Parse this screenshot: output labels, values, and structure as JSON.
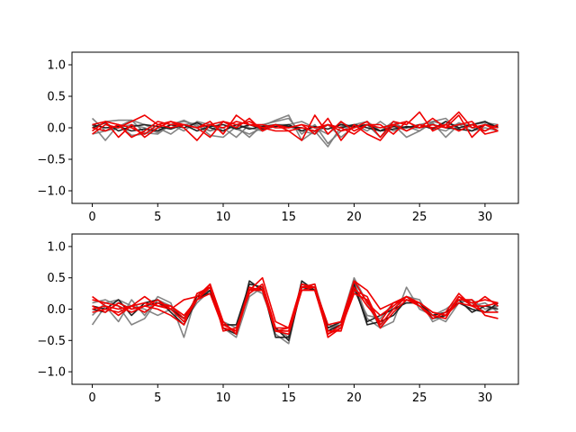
{
  "chart_data": [
    {
      "type": "line",
      "title": "",
      "xlabel": "",
      "ylabel": "",
      "xlim": [
        -1.55,
        32.55
      ],
      "ylim": [
        -1.2,
        1.2
      ],
      "xticks": [
        0,
        5,
        10,
        15,
        20,
        25,
        30
      ],
      "yticks": [
        -1.0,
        -0.5,
        0.0,
        0.5,
        1.0
      ],
      "xtick_labels": [
        "0",
        "5",
        "10",
        "15",
        "20",
        "25",
        "30"
      ],
      "ytick_labels": [
        "−1.0",
        "−0.5",
        "0.0",
        "0.5",
        "1.0"
      ],
      "grid": false,
      "x": [
        0,
        1,
        2,
        3,
        4,
        5,
        6,
        7,
        8,
        9,
        10,
        11,
        12,
        13,
        14,
        15,
        16,
        17,
        18,
        19,
        20,
        21,
        22,
        23,
        24,
        25,
        26,
        27,
        28,
        29,
        30,
        31
      ],
      "series": [
        {
          "color": "#777777",
          "values": [
            0.15,
            -0.05,
            0.02,
            0.12,
            -0.08,
            -0.1,
            0.05,
            0.12,
            0.02,
            -0.05,
            0.0,
            -0.15,
            0.05,
            0.03,
            0.12,
            0.2,
            -0.2,
            -0.05,
            -0.3,
            0.02,
            0.05,
            -0.05,
            0.1,
            -0.05,
            0.02,
            -0.05,
            0.08,
            -0.15,
            0.05,
            0.05,
            0.08,
            0.05
          ]
        },
        {
          "color": "#777777",
          "values": [
            -0.05,
            0.1,
            0.12,
            0.12,
            0.05,
            -0.05,
            0.05,
            0.1,
            0.05,
            -0.12,
            -0.15,
            0.02,
            -0.15,
            0.05,
            0.1,
            0.15,
            -0.1,
            0.05,
            -0.25,
            -0.05,
            0.05,
            0.1,
            -0.05,
            0.05,
            -0.15,
            -0.05,
            0.1,
            0.15,
            -0.05,
            0.05,
            0.1,
            -0.05
          ]
        },
        {
          "color": "#777777",
          "values": [
            0.05,
            -0.2,
            0.05,
            -0.12,
            -0.1,
            0.0,
            -0.1,
            0.05,
            0.08,
            -0.05,
            0.1,
            -0.02,
            -0.1,
            0.0,
            0.05,
            0.05,
            0.1,
            0.0,
            -0.1,
            0.08,
            0.0,
            0.05,
            -0.15,
            0.05,
            0.0,
            0.05,
            0.1,
            0.05,
            0.05,
            -0.05,
            0.0,
            -0.05
          ]
        },
        {
          "color": "#777777",
          "values": [
            -0.1,
            -0.05,
            0.0,
            0.05,
            0.0,
            -0.08,
            0.05,
            -0.05,
            0.1,
            0.05,
            -0.05,
            0.05,
            0.0,
            -0.05,
            0.05,
            0.02,
            -0.05,
            -0.1,
            0.05,
            -0.15,
            0.02,
            0.05,
            -0.05,
            0.1,
            -0.05,
            0.05,
            0.0,
            -0.05,
            0.08,
            0.0,
            -0.05,
            0.05
          ]
        },
        {
          "color": "#222222",
          "values": [
            0.0,
            0.08,
            -0.05,
            0.02,
            0.05,
            0.02,
            -0.02,
            0.05,
            -0.05,
            0.02,
            0.05,
            -0.02,
            0.05,
            -0.02,
            0.02,
            0.05,
            -0.05,
            0.02,
            -0.02,
            0.05,
            0.02,
            0.05,
            -0.05,
            0.02,
            0.0,
            0.05,
            -0.02,
            0.1,
            0.0,
            0.05,
            0.1,
            0.0
          ]
        },
        {
          "color": "#222222",
          "values": [
            0.05,
            0.0,
            0.02,
            -0.05,
            -0.02,
            -0.05,
            0.05,
            0.0,
            0.08,
            0.0,
            -0.05,
            0.05,
            -0.02,
            0.02,
            0.05,
            0.02,
            0.0,
            -0.05,
            0.05,
            0.0,
            0.05,
            0.0,
            -0.05,
            -0.02,
            0.02,
            0.0,
            0.05,
            0.0,
            -0.02,
            -0.05,
            0.05,
            0.02
          ]
        },
        {
          "color": "#ee0000",
          "values": [
            0.05,
            0.1,
            0.05,
            -0.15,
            -0.05,
            0.1,
            0.05,
            0.05,
            0.0,
            -0.15,
            0.1,
            0.05,
            0.1,
            0.0,
            -0.05,
            -0.05,
            0.0,
            -0.05,
            0.05,
            -0.05,
            0.0,
            0.1,
            -0.15,
            0.1,
            0.05,
            0.25,
            -0.05,
            0.05,
            0.25,
            0.0,
            0.05,
            0.0
          ]
        },
        {
          "color": "#ee0000",
          "values": [
            -0.1,
            0.05,
            0.0,
            0.1,
            0.2,
            0.05,
            0.1,
            0.0,
            -0.2,
            0.05,
            0.1,
            0.0,
            0.15,
            -0.05,
            0.05,
            -0.05,
            -0.2,
            0.2,
            -0.1,
            0.1,
            -0.05,
            0.05,
            0.05,
            -0.1,
            0.1,
            0.0,
            0.05,
            0.0,
            0.2,
            -0.15,
            0.05,
            -0.05
          ]
        },
        {
          "color": "#ee0000",
          "values": [
            0.0,
            -0.05,
            0.05,
            0.0,
            -0.1,
            0.05,
            0.0,
            0.05,
            0.0,
            0.05,
            0.0,
            0.1,
            0.05,
            0.0,
            0.05,
            0.0,
            0.05,
            0.0,
            0.05,
            0.0,
            -0.1,
            0.05,
            0.0,
            0.05,
            -0.05,
            0.05,
            0.0,
            0.05,
            -0.05,
            0.05,
            -0.05,
            0.05
          ]
        },
        {
          "color": "#ee0000",
          "values": [
            -0.05,
            0.1,
            -0.15,
            0.05,
            -0.15,
            0.0,
            0.1,
            0.05,
            0.0,
            0.1,
            -0.1,
            0.2,
            0.05,
            0.05,
            0.0,
            0.0,
            0.05,
            -0.1,
            0.15,
            -0.2,
            0.05,
            -0.1,
            -0.2,
            0.05,
            0.1,
            0.0,
            0.15,
            0.0,
            0.05,
            0.1,
            -0.1,
            -0.05
          ]
        }
      ]
    },
    {
      "type": "line",
      "title": "",
      "xlabel": "",
      "ylabel": "",
      "xlim": [
        -1.55,
        32.55
      ],
      "ylim": [
        -1.2,
        1.2
      ],
      "xticks": [
        0,
        5,
        10,
        15,
        20,
        25,
        30
      ],
      "yticks": [
        -1.0,
        -0.5,
        0.0,
        0.5,
        1.0
      ],
      "xtick_labels": [
        "0",
        "5",
        "10",
        "15",
        "20",
        "25",
        "30"
      ],
      "ytick_labels": [
        "−1.0",
        "−0.5",
        "0.0",
        "0.5",
        "1.0"
      ],
      "grid": false,
      "x": [
        0,
        1,
        2,
        3,
        4,
        5,
        6,
        7,
        8,
        9,
        10,
        11,
        12,
        13,
        14,
        15,
        16,
        17,
        18,
        19,
        20,
        21,
        22,
        23,
        24,
        25,
        26,
        27,
        28,
        29,
        30,
        31
      ],
      "series": [
        {
          "color": "#777777",
          "values": [
            -0.25,
            0.05,
            -0.2,
            0.15,
            -0.1,
            0.2,
            0.1,
            -0.45,
            0.25,
            0.3,
            -0.3,
            -0.45,
            0.2,
            0.35,
            -0.4,
            -0.55,
            0.4,
            0.3,
            -0.35,
            -0.2,
            0.5,
            0.1,
            -0.3,
            -0.2,
            0.35,
            0.0,
            -0.1,
            -0.2,
            0.1,
            0.15,
            0.0,
            0.05
          ]
        },
        {
          "color": "#777777",
          "values": [
            0.1,
            0.15,
            0.05,
            -0.25,
            -0.15,
            0.15,
            0.05,
            -0.15,
            0.15,
            0.35,
            -0.25,
            -0.35,
            0.35,
            0.25,
            -0.3,
            -0.45,
            0.35,
            0.4,
            -0.3,
            -0.25,
            0.45,
            -0.15,
            -0.3,
            0.05,
            0.2,
            0.15,
            -0.2,
            -0.1,
            0.2,
            0.05,
            0.1,
            -0.05
          ]
        },
        {
          "color": "#777777",
          "values": [
            -0.1,
            0.1,
            0.15,
            0.05,
            0.0,
            -0.1,
            0.0,
            -0.2,
            0.1,
            0.3,
            -0.2,
            -0.3,
            0.3,
            0.3,
            -0.35,
            -0.35,
            0.3,
            0.35,
            -0.25,
            -0.3,
            0.3,
            -0.1,
            -0.15,
            0.1,
            0.2,
            0.05,
            -0.1,
            0.0,
            0.15,
            0.1,
            -0.05,
            0.05
          ]
        },
        {
          "color": "#222222",
          "values": [
            0.0,
            -0.05,
            0.1,
            0.0,
            0.05,
            0.1,
            0.0,
            -0.15,
            0.2,
            0.25,
            -0.25,
            -0.25,
            0.4,
            0.35,
            -0.45,
            -0.45,
            0.45,
            0.3,
            -0.3,
            -0.2,
            0.35,
            -0.2,
            -0.1,
            0.0,
            0.1,
            0.1,
            -0.1,
            -0.05,
            0.1,
            0.0,
            -0.05,
            0.1
          ]
        },
        {
          "color": "#222222",
          "values": [
            0.05,
            0.0,
            0.15,
            -0.1,
            0.1,
            0.15,
            -0.05,
            -0.25,
            0.15,
            0.3,
            -0.3,
            -0.4,
            0.45,
            0.3,
            -0.3,
            -0.5,
            0.35,
            0.3,
            -0.35,
            -0.25,
            0.4,
            -0.25,
            -0.2,
            -0.1,
            0.15,
            0.1,
            -0.15,
            -0.1,
            0.15,
            -0.05,
            0.05,
            0.0
          ]
        },
        {
          "color": "#ee0000",
          "values": [
            0.2,
            0.05,
            -0.1,
            0.05,
            0.2,
            0.05,
            0.0,
            0.15,
            0.2,
            0.4,
            -0.2,
            -0.4,
            0.3,
            0.5,
            -0.2,
            -0.3,
            0.35,
            0.35,
            -0.4,
            -0.3,
            0.45,
            0.3,
            0.0,
            0.1,
            0.2,
            0.1,
            -0.05,
            -0.1,
            0.2,
            0.1,
            0.15,
            0.1
          ]
        },
        {
          "color": "#ee0000",
          "values": [
            0.0,
            0.05,
            0.0,
            0.05,
            -0.05,
            0.1,
            0.05,
            -0.15,
            0.15,
            0.25,
            -0.3,
            -0.35,
            0.35,
            0.3,
            -0.35,
            -0.35,
            0.3,
            0.3,
            -0.4,
            -0.25,
            0.3,
            0.2,
            -0.25,
            0.0,
            0.2,
            0.05,
            -0.1,
            -0.15,
            0.2,
            0.05,
            -0.05,
            -0.05
          ]
        },
        {
          "color": "#ee0000",
          "values": [
            0.05,
            -0.05,
            0.1,
            0.0,
            0.05,
            0.0,
            -0.1,
            -0.25,
            0.25,
            0.35,
            -0.25,
            -0.35,
            0.3,
            0.3,
            -0.35,
            -0.3,
            0.4,
            0.35,
            -0.35,
            -0.35,
            0.35,
            0.05,
            -0.2,
            0.1,
            0.15,
            0.05,
            -0.15,
            -0.05,
            0.25,
            0.05,
            0.2,
            0.05
          ]
        },
        {
          "color": "#ee0000",
          "values": [
            -0.05,
            0.0,
            -0.05,
            0.05,
            0.1,
            0.05,
            0.05,
            -0.1,
            0.15,
            0.4,
            -0.35,
            -0.3,
            0.25,
            0.4,
            -0.3,
            -0.3,
            0.35,
            0.4,
            -0.45,
            -0.3,
            0.25,
            0.15,
            -0.3,
            -0.05,
            0.15,
            0.1,
            -0.05,
            -0.1,
            0.15,
            0.15,
            -0.1,
            -0.15
          ]
        },
        {
          "color": "#ee0000",
          "values": [
            0.15,
            0.1,
            0.05,
            -0.05,
            0.05,
            0.15,
            0.0,
            -0.2,
            0.15,
            0.35,
            -0.3,
            -0.35,
            0.3,
            0.35,
            -0.35,
            -0.4,
            0.3,
            0.35,
            -0.25,
            -0.2,
            0.45,
            0.1,
            -0.1,
            0.05,
            0.2,
            0.1,
            -0.05,
            -0.1,
            0.1,
            0.05,
            0.05,
            0.1
          ]
        }
      ]
    }
  ]
}
